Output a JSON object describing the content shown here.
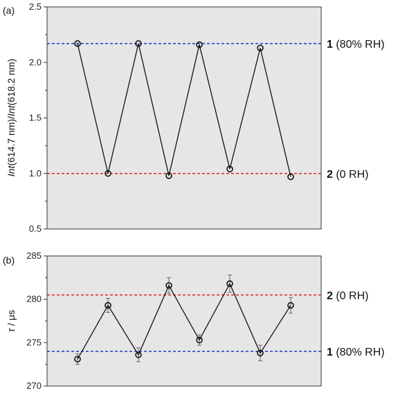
{
  "chart_data": [
    {
      "type": "line",
      "panel_label": "(a)",
      "ylabel_parts": [
        "Int",
        "(614.7 nm)/",
        "Int",
        "(618.2 nm)"
      ],
      "ylim": [
        0.5,
        2.5
      ],
      "yticks": [
        0.5,
        1.0,
        1.5,
        2.0,
        2.5
      ],
      "ytick_labels": [
        "0.5",
        "1.0",
        "1.5",
        "2.0",
        "2.5"
      ],
      "x": [
        1,
        2,
        3,
        4,
        5,
        6,
        7,
        8
      ],
      "values": [
        2.17,
        1.0,
        2.17,
        0.98,
        2.16,
        1.04,
        2.13,
        0.97
      ],
      "errors": [
        0,
        0,
        0,
        0,
        0,
        0,
        0,
        0
      ],
      "reference_lines": [
        {
          "y": 2.17,
          "color": "#2233cc",
          "num": "1",
          "text": " (80% RH)"
        },
        {
          "y": 1.0,
          "color": "#e02020",
          "num": "2",
          "text": " (0 RH)"
        }
      ],
      "background": "#e6e6e6"
    },
    {
      "type": "line",
      "panel_label": "(b)",
      "ylabel_parts": [
        "τ",
        " / μs"
      ],
      "ylim": [
        270,
        285
      ],
      "yticks": [
        270,
        275,
        280,
        285
      ],
      "ytick_labels": [
        "270",
        "275",
        "280",
        "285"
      ],
      "x": [
        1,
        2,
        3,
        4,
        5,
        6,
        7,
        8
      ],
      "values": [
        273.1,
        279.3,
        273.6,
        281.6,
        275.3,
        281.8,
        273.8,
        279.3
      ],
      "errors": [
        0.6,
        0.8,
        0.8,
        0.9,
        0.6,
        1.0,
        0.9,
        0.9
      ],
      "reference_lines": [
        {
          "y": 280.5,
          "color": "#e02020",
          "num": "2",
          "text": " (0 RH)"
        },
        {
          "y": 274.0,
          "color": "#2233cc",
          "num": "1",
          "text": " (80% RH)"
        }
      ],
      "background": "#e6e6e6"
    }
  ]
}
